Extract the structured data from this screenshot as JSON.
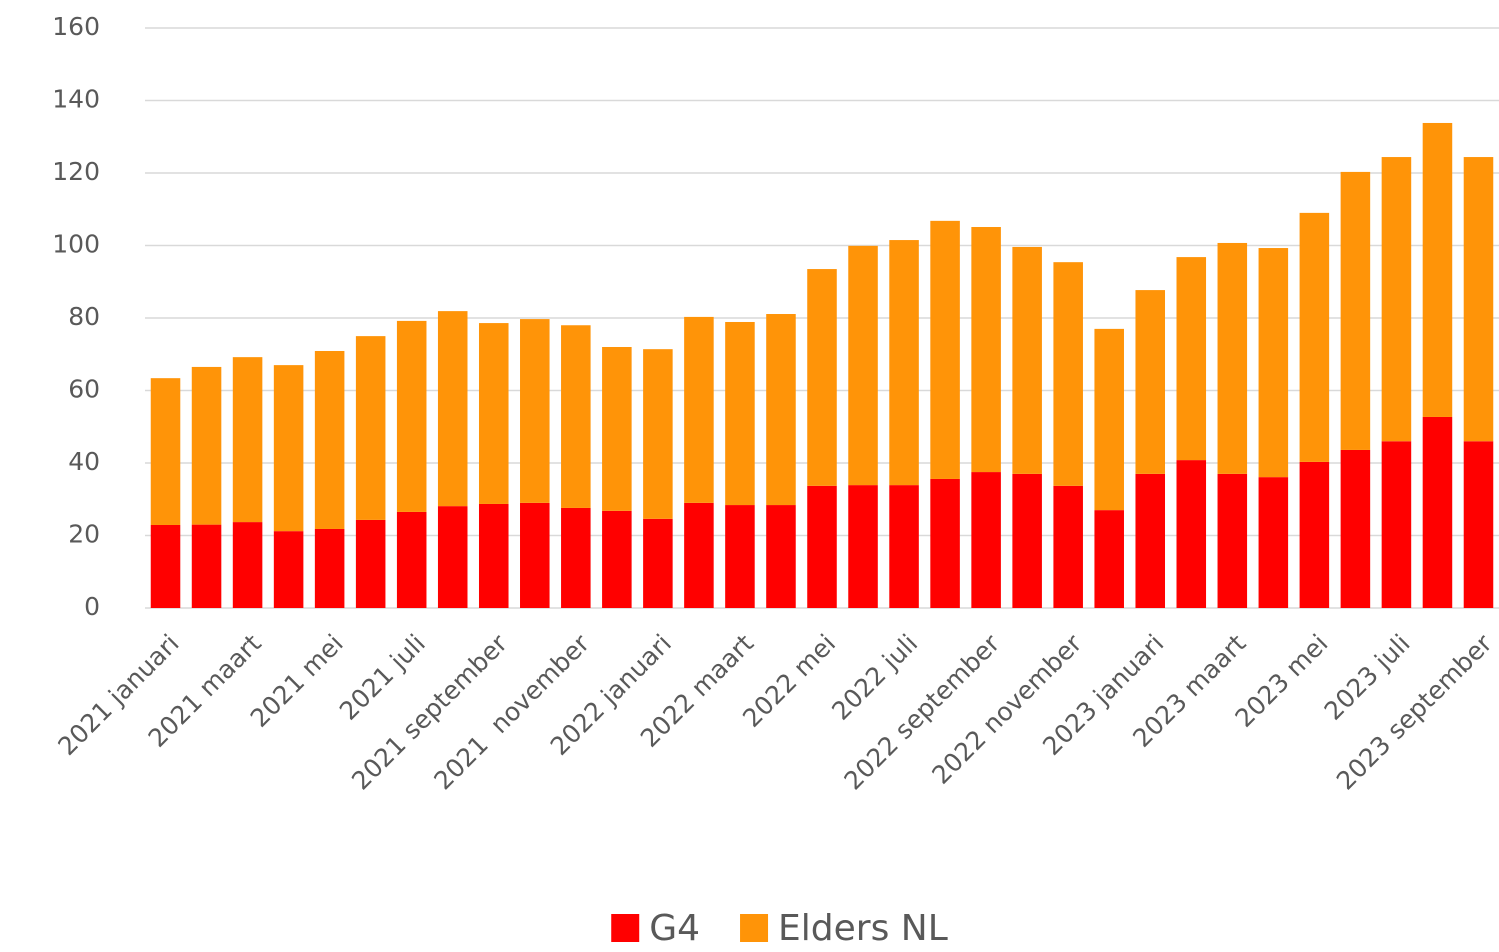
{
  "chart_data": {
    "type": "stacked_bar",
    "categories": [
      "2021 januari",
      null,
      "2021 maart",
      null,
      "2021 mei",
      null,
      "2021 juli",
      null,
      "2021 september",
      null,
      "2021  november",
      null,
      "2022 januari",
      null,
      "2022 maart",
      null,
      "2022 mei",
      null,
      "2022 juli",
      null,
      "2022 september",
      null,
      "2022 november",
      null,
      "2023 januari",
      null,
      "2023 maart",
      null,
      "2023 mei",
      null,
      "2023 juli",
      null,
      "2023 september"
    ],
    "series": [
      {
        "name": "G4",
        "color": "#ff0000",
        "values": [
          22.9,
          23,
          23.7,
          21.2,
          21.8,
          24.3,
          26.5,
          28.1,
          28.7,
          29,
          27.6,
          26.8,
          24.6,
          29,
          28.4,
          28.4,
          33.7,
          33.9,
          33.9,
          35.6,
          37.5,
          37,
          33.7,
          27,
          37,
          40.8,
          37,
          36.1,
          40.3,
          43.6,
          46,
          52.7,
          46
        ]
      },
      {
        "name": "Elders NL",
        "color": "#ff9408",
        "values": [
          40.5,
          43.5,
          45.5,
          45.8,
          49.1,
          50.7,
          52.7,
          53.8,
          49.9,
          50.7,
          50.4,
          45.2,
          46.8,
          51.3,
          50.5,
          52.7,
          59.8,
          66,
          67.6,
          71.2,
          67.6,
          62.6,
          61.7,
          50,
          50.7,
          56,
          63.7,
          63.2,
          68.7,
          76.7,
          78.4,
          81.1,
          78.4
        ]
      }
    ],
    "ylim": [
      0,
      160
    ],
    "yticks": [
      0,
      20,
      40,
      60,
      80,
      100,
      120,
      140,
      160
    ],
    "grid": true,
    "legend": "bottom"
  }
}
